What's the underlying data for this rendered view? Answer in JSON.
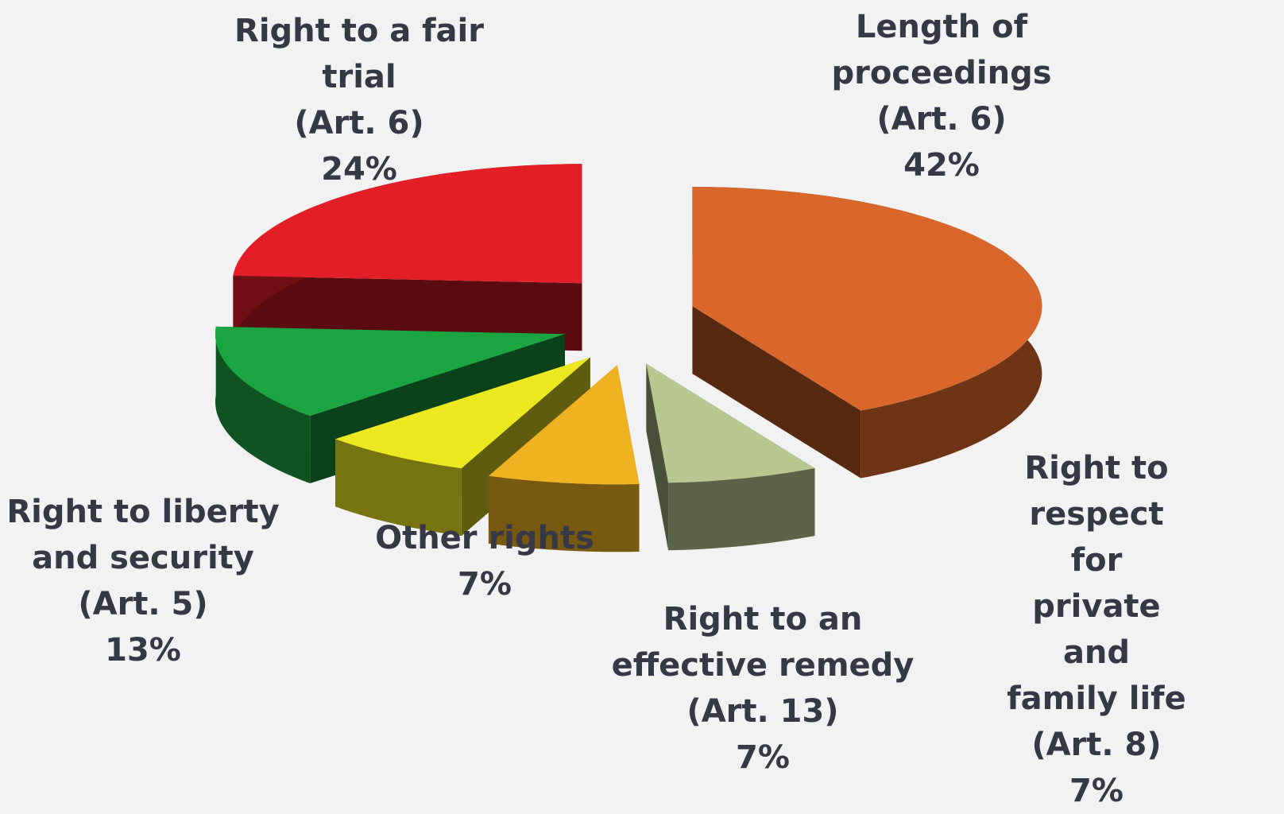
{
  "chart_data": {
    "type": "pie3d",
    "categories": [
      "Length of\nproceedings\n(Art. 6)",
      "Right to respect\nfor private and\nfamily life\n(Art. 8)",
      "Right to an\neffective remedy\n(Art. 13)",
      "Other rights",
      "Right to liberty\nand security\n(Art. 5)",
      "Right to a fair\ntrial\n(Art. 6)"
    ],
    "values": [
      42,
      7,
      7,
      7,
      13,
      24
    ],
    "value_labels": [
      "42%",
      "7%",
      "7%",
      "7%",
      "13%",
      "24%"
    ],
    "colors": [
      "#d9672b",
      "#b9c690",
      "#efb221",
      "#ece820",
      "#1ba541",
      "#e41e27"
    ]
  }
}
